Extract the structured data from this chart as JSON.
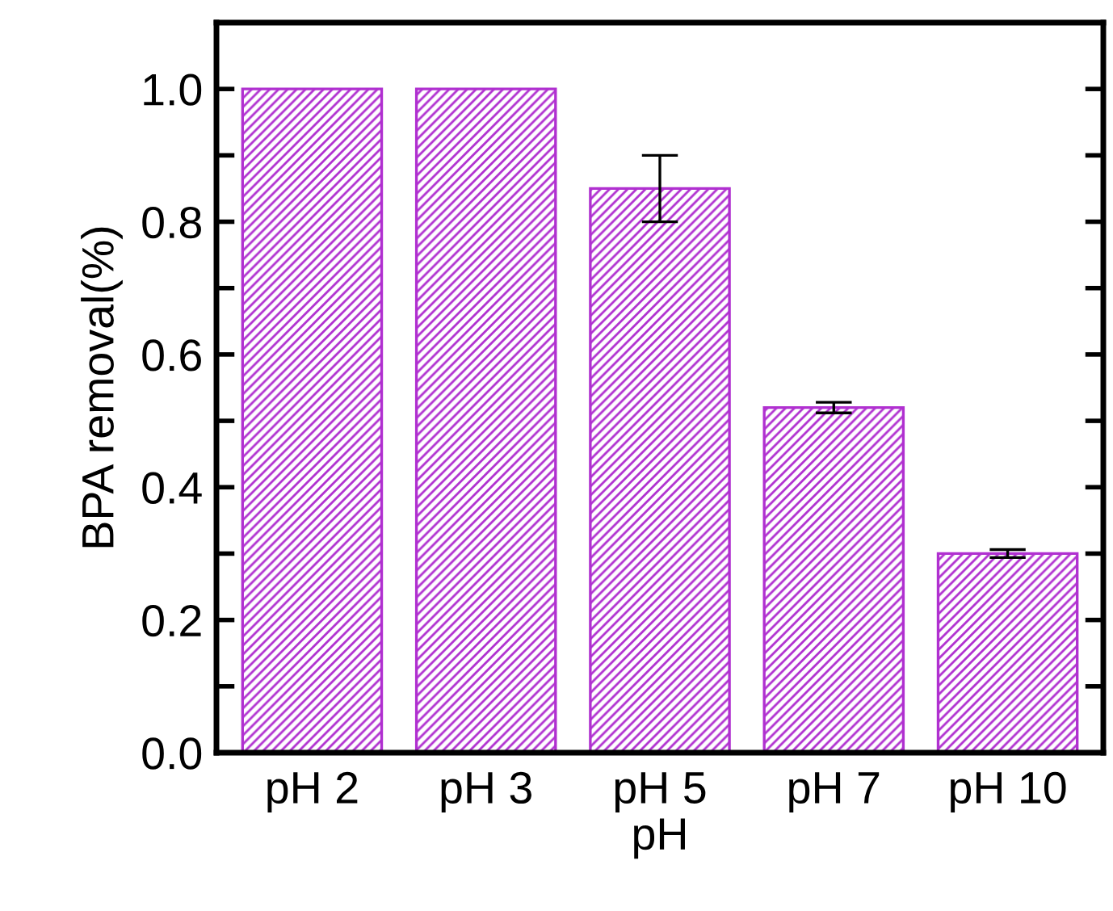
{
  "chart_data": {
    "type": "bar",
    "xlabel": "pH",
    "ylabel": "BPA removal(%)",
    "categories": [
      "pH 2",
      "pH 3",
      "pH 5",
      "pH 7",
      "pH 10"
    ],
    "values": [
      1.0,
      1.0,
      0.85,
      0.52,
      0.3
    ],
    "errors": [
      null,
      null,
      0.05,
      0.008,
      0.006
    ],
    "color": "#b030d0",
    "ylim": [
      0,
      1.1
    ],
    "yticks": [
      {
        "value": 0,
        "label": "0.0"
      },
      {
        "value": 0.1,
        "label": null
      },
      0.2,
      {
        "value": 0.3,
        "label": null
      },
      0.4,
      {
        "value": 0.5,
        "label": null
      },
      0.6,
      {
        "value": 0.7,
        "label": null
      },
      0.8,
      {
        "value": 0.9,
        "label": null
      },
      {
        "value": 1,
        "label": "1.0"
      }
    ],
    "grid": false
  }
}
